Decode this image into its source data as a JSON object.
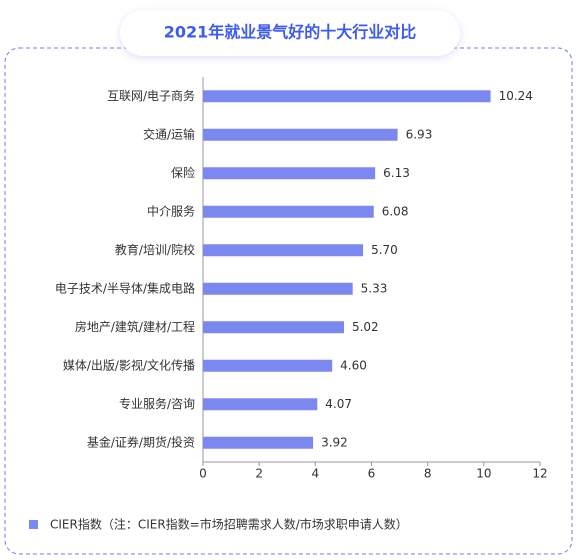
{
  "chart_data": {
    "type": "barh",
    "title": "2021年就业景气好的十大行业对比",
    "categories": [
      "互联网/电子商务",
      "交通/运输",
      "保险",
      "中介服务",
      "教育/培训/院校",
      "电子技术/半导体/集成电路",
      "房地产/建筑/建材/工程",
      "媒体/出版/影视/文化传播",
      "专业服务/咨询",
      "基金/证券/期货/投资"
    ],
    "series": [
      {
        "name": "CIER指数（注：CIER指数=市场招聘需求人数/市场求职申请人数）",
        "color": "#7b88f0",
        "values": [
          10.24,
          6.93,
          6.13,
          6.08,
          5.7,
          5.33,
          5.02,
          4.6,
          4.07,
          3.92
        ],
        "value_labels": [
          "10.24",
          "6.93",
          "6.13",
          "6.08",
          "5.70",
          "5.33",
          "5.02",
          "4.60",
          "4.07",
          "3.92"
        ]
      }
    ],
    "xlim": [
      0,
      12
    ],
    "xticks": [
      0,
      2,
      4,
      6,
      8,
      10,
      12
    ],
    "legend": "bottom-left"
  }
}
